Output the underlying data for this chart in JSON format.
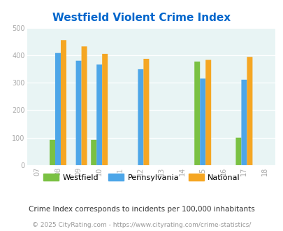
{
  "title": "Westfield Violent Crime Index",
  "xlim": [
    2006.5,
    2018.5
  ],
  "ylim": [
    0,
    500
  ],
  "yticks": [
    0,
    100,
    200,
    300,
    400,
    500
  ],
  "xticks": [
    2007,
    2008,
    2009,
    2010,
    2011,
    2012,
    2013,
    2014,
    2015,
    2016,
    2017,
    2018
  ],
  "xtick_labels": [
    "07",
    "08",
    "09",
    "10",
    "11",
    "12",
    "13",
    "14",
    "15",
    "16",
    "17",
    "18"
  ],
  "bar_width": 0.27,
  "plot_bg_color": "#e8f4f4",
  "series": {
    "Westfield": {
      "color": "#7ac143",
      "data": {
        "2008": 92,
        "2010": 92,
        "2015": 377,
        "2017": 100
      }
    },
    "Pennsylvania": {
      "color": "#4da6e8",
      "data": {
        "2008": 408,
        "2009": 380,
        "2010": 366,
        "2012": 349,
        "2015": 315,
        "2017": 311
      }
    },
    "National": {
      "color": "#f5a623",
      "data": {
        "2008": 455,
        "2009": 432,
        "2010": 405,
        "2012": 387,
        "2015": 383,
        "2017": 394
      }
    }
  },
  "legend_labels": [
    "Westfield",
    "Pennsylvania",
    "National"
  ],
  "legend_colors": [
    "#7ac143",
    "#4da6e8",
    "#f5a623"
  ],
  "footnote": "Crime Index corresponds to incidents per 100,000 inhabitants",
  "copyright": "© 2025 CityRating.com - https://www.cityrating.com/crime-statistics/",
  "title_color": "#0066cc",
  "title_fontsize": 11,
  "tick_label_color": "#aaaaaa",
  "footnote_color": "#333333",
  "footnote_fontsize": 7.5,
  "copyright_color": "#999999",
  "copyright_fontsize": 6.5
}
